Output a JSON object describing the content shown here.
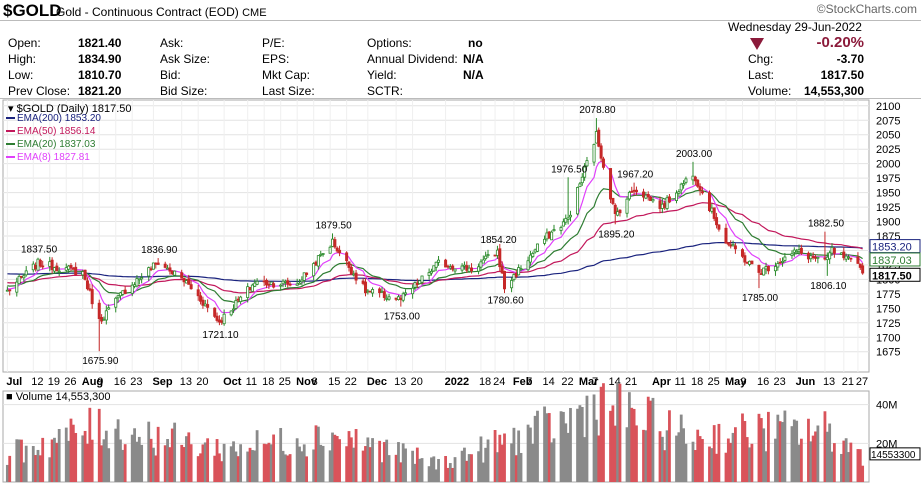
{
  "header": {
    "symbol": "$GOLD",
    "description": "Gold - Continuous Contract (EOD)",
    "exchange": "CME",
    "watermark": "©StockCharts.com",
    "date": "Wednesday  29-Jun-2022",
    "change_pct": "-0.20%",
    "quote_left": [
      {
        "label": "Open:",
        "value": "1821.40"
      },
      {
        "label": "High:",
        "value": "1834.90"
      },
      {
        "label": "Low:",
        "value": "1810.70"
      },
      {
        "label": "Prev Close:",
        "value": "1821.20"
      }
    ],
    "quote_mid": [
      "Ask:",
      "Ask Size:",
      "Bid:",
      "Bid Size:"
    ],
    "quote_mid2": [
      "P/E:",
      "EPS:",
      "Mkt Cap:",
      "Last Size:"
    ],
    "quote_right": [
      {
        "label": "Options:",
        "value": "no"
      },
      {
        "label": "Annual Dividend:",
        "value": "N/A"
      },
      {
        "label": "Yield:",
        "value": "N/A"
      },
      {
        "label": "SCTR:",
        "value": ""
      }
    ],
    "quote_far": [
      {
        "label": "Chg:",
        "value": "-3.70"
      },
      {
        "label": "Last:",
        "value": "1817.50"
      },
      {
        "label": "Volume:",
        "value": "14,553,300"
      }
    ]
  },
  "colors": {
    "ema200": "#1a237e",
    "ema50": "#c2185b",
    "ema20": "#2e7d32",
    "ema8": "#e040fb",
    "up": "#2a8a2a",
    "down": "#c62828",
    "vol_up": "#8a8a8a",
    "vol_down": "#d9535a",
    "accent": "#8b1a3a"
  },
  "chart_data": [
    {
      "type": "candlestick",
      "title": "$GOLD (Daily) 1817.50",
      "legend": [
        {
          "name": "EMA(200) 1853.20",
          "color": "#1a237e"
        },
        {
          "name": "EMA(50) 1856.14",
          "color": "#c2185b"
        },
        {
          "name": "EMA(20) 1837.03",
          "color": "#2e7d32"
        },
        {
          "name": "EMA(8) 1827.81",
          "color": "#e040fb"
        }
      ],
      "x_tick_labels": [
        "Jul",
        "12",
        "19",
        "26",
        "Aug",
        "9",
        "16",
        "23",
        "Sep",
        "13",
        "20",
        "Oct",
        "11",
        "18",
        "25",
        "Nov",
        "8",
        "15",
        "22",
        "Dec",
        "13",
        "20",
        "2022",
        "18",
        "24",
        "Feb",
        "7",
        "14",
        "22",
        "Mar",
        "7",
        "14",
        "21",
        "Apr",
        "11",
        "18",
        "25",
        "May",
        "9",
        "16",
        "23",
        "Jun",
        "13",
        "21",
        "27"
      ],
      "x_bold": [
        "Jul",
        "Aug",
        "Sep",
        "Oct",
        "Nov",
        "Dec",
        "2022",
        "Feb",
        "Mar",
        "Apr",
        "May",
        "Jun"
      ],
      "y_ticks": [
        1675,
        1700,
        1725,
        1750,
        1775,
        1800,
        1825,
        1850,
        1875,
        1900,
        1925,
        1950,
        1975,
        2000,
        2025,
        2050,
        2075,
        2100
      ],
      "ylim": [
        1640,
        2110
      ],
      "axis_markers": [
        {
          "value": 1853.2,
          "label": "1853.20"
        },
        {
          "value": 1837.03,
          "label": "1837.03"
        },
        {
          "value": 1817.5,
          "label": "1817.50"
        }
      ],
      "annotations": [
        {
          "label": "1837.50",
          "date": "2021-07-14",
          "value": 1837.5
        },
        {
          "label": "1675.90",
          "date": "2021-08-09",
          "value": 1675.9
        },
        {
          "label": "1836.90",
          "date": "2021-09-03",
          "value": 1836.9
        },
        {
          "label": "1721.10",
          "date": "2021-09-29",
          "value": 1721.1
        },
        {
          "label": "1879.50",
          "date": "2021-11-16",
          "value": 1879.5
        },
        {
          "label": "1753.00",
          "date": "2021-12-15",
          "value": 1753.0
        },
        {
          "label": "1854.20",
          "date": "2022-01-25",
          "value": 1854.2
        },
        {
          "label": "1780.60",
          "date": "2022-01-28",
          "value": 1780.6
        },
        {
          "label": "1976.50",
          "date": "2022-02-24",
          "value": 1976.5
        },
        {
          "label": "2078.80",
          "date": "2022-03-08",
          "value": 2078.8
        },
        {
          "label": "1895.20",
          "date": "2022-03-16",
          "value": 1895.2
        },
        {
          "label": "1967.20",
          "date": "2022-03-24",
          "value": 1967.2
        },
        {
          "label": "2003.00",
          "date": "2022-04-18",
          "value": 2003.0
        },
        {
          "label": "1785.00",
          "date": "2022-05-16",
          "value": 1785.0
        },
        {
          "label": "1882.50",
          "date": "2022-06-13",
          "value": 1882.5
        },
        {
          "label": "1806.10",
          "date": "2022-06-14",
          "value": 1806.1
        }
      ],
      "key_closes": [
        {
          "date": "2021-07-01",
          "value": 1780
        },
        {
          "date": "2021-07-14",
          "value": 1828
        },
        {
          "date": "2021-08-02",
          "value": 1812
        },
        {
          "date": "2021-08-09",
          "value": 1728
        },
        {
          "date": "2021-08-20",
          "value": 1782
        },
        {
          "date": "2021-09-03",
          "value": 1830
        },
        {
          "date": "2021-09-15",
          "value": 1795
        },
        {
          "date": "2021-09-29",
          "value": 1727
        },
        {
          "date": "2021-10-14",
          "value": 1795
        },
        {
          "date": "2021-11-01",
          "value": 1792
        },
        {
          "date": "2021-11-16",
          "value": 1865
        },
        {
          "date": "2021-11-30",
          "value": 1780
        },
        {
          "date": "2021-12-15",
          "value": 1765
        },
        {
          "date": "2021-12-31",
          "value": 1828
        },
        {
          "date": "2022-01-14",
          "value": 1818
        },
        {
          "date": "2022-01-25",
          "value": 1848
        },
        {
          "date": "2022-01-28",
          "value": 1786
        },
        {
          "date": "2022-02-14",
          "value": 1870
        },
        {
          "date": "2022-02-24",
          "value": 1905
        },
        {
          "date": "2022-03-08",
          "value": 2050
        },
        {
          "date": "2022-03-16",
          "value": 1910
        },
        {
          "date": "2022-03-24",
          "value": 1958
        },
        {
          "date": "2022-04-05",
          "value": 1925
        },
        {
          "date": "2022-04-18",
          "value": 1985
        },
        {
          "date": "2022-05-02",
          "value": 1865
        },
        {
          "date": "2022-05-16",
          "value": 1812
        },
        {
          "date": "2022-06-01",
          "value": 1848
        },
        {
          "date": "2022-06-13",
          "value": 1830
        },
        {
          "date": "2022-06-16",
          "value": 1850
        },
        {
          "date": "2022-06-29",
          "value": 1817.5
        }
      ]
    },
    {
      "type": "bar",
      "title": "Volume 14,553,300",
      "y_ticks": [
        {
          "value": 20000000,
          "label": "20M"
        },
        {
          "value": 40000000,
          "label": "40M"
        }
      ],
      "ylim": [
        0,
        45000000
      ],
      "axis_marker": {
        "value": 14553300,
        "label": "14553300"
      },
      "key_volumes": [
        {
          "date": "2021-07-01",
          "value": 15000000
        },
        {
          "date": "2021-08-09",
          "value": 30000000
        },
        {
          "date": "2021-10-01",
          "value": 18000000
        },
        {
          "date": "2021-11-16",
          "value": 26000000
        },
        {
          "date": "2021-12-31",
          "value": 10000000
        },
        {
          "date": "2022-01-28",
          "value": 22000000
        },
        {
          "date": "2022-02-24",
          "value": 33000000
        },
        {
          "date": "2022-03-08",
          "value": 44000000
        },
        {
          "date": "2022-04-18",
          "value": 24000000
        },
        {
          "date": "2022-05-16",
          "value": 28000000
        },
        {
          "date": "2022-06-13",
          "value": 28000000
        },
        {
          "date": "2022-06-29",
          "value": 14553300
        }
      ]
    }
  ]
}
